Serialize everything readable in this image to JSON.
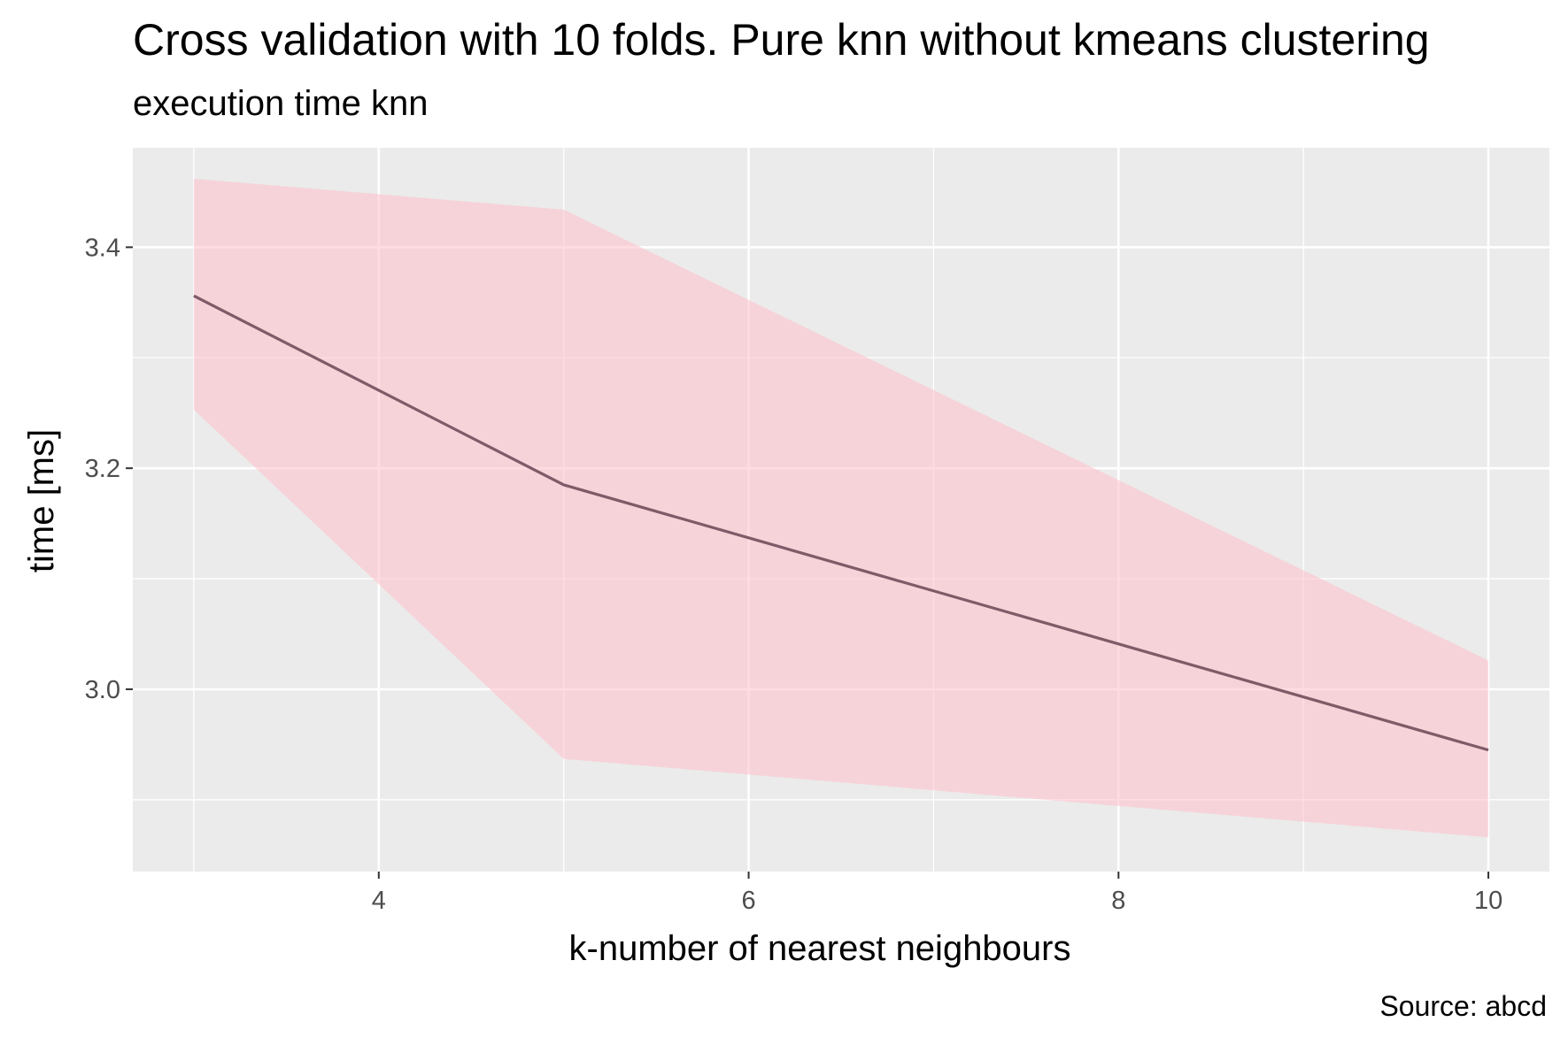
{
  "chart_data": {
    "type": "line",
    "title": "Cross validation with 10 folds. Pure knn without kmeans clustering",
    "subtitle": "execution time knn",
    "xlabel": "k-number of nearest neighbours",
    "ylabel": "time [ms]",
    "caption": "Source: abcd",
    "xlim": [
      2.67,
      10.33
    ],
    "ylim": [
      2.835,
      3.49
    ],
    "x_ticks": [
      4,
      6,
      8,
      10
    ],
    "x_tick_labels": [
      "4",
      "6",
      "8",
      "10"
    ],
    "x_minor_ticks": [
      3,
      5,
      7,
      9
    ],
    "y_ticks": [
      3.0,
      3.2,
      3.4
    ],
    "y_tick_labels": [
      "3.0",
      "3.2",
      "3.4"
    ],
    "y_minor_ticks": [
      2.9,
      3.1,
      3.3
    ],
    "grid": true,
    "series": [
      {
        "x": [
          3,
          5,
          10
        ],
        "values": [
          3.356,
          3.185,
          2.945
        ],
        "lower": [
          3.253,
          2.937,
          2.866
        ],
        "upper": [
          3.462,
          3.434,
          3.026
        ]
      }
    ],
    "colors": {
      "panel": "#ebebeb",
      "grid": "#ffffff",
      "ribbon": "#ffc0cb",
      "line": "#7f5a68"
    }
  }
}
